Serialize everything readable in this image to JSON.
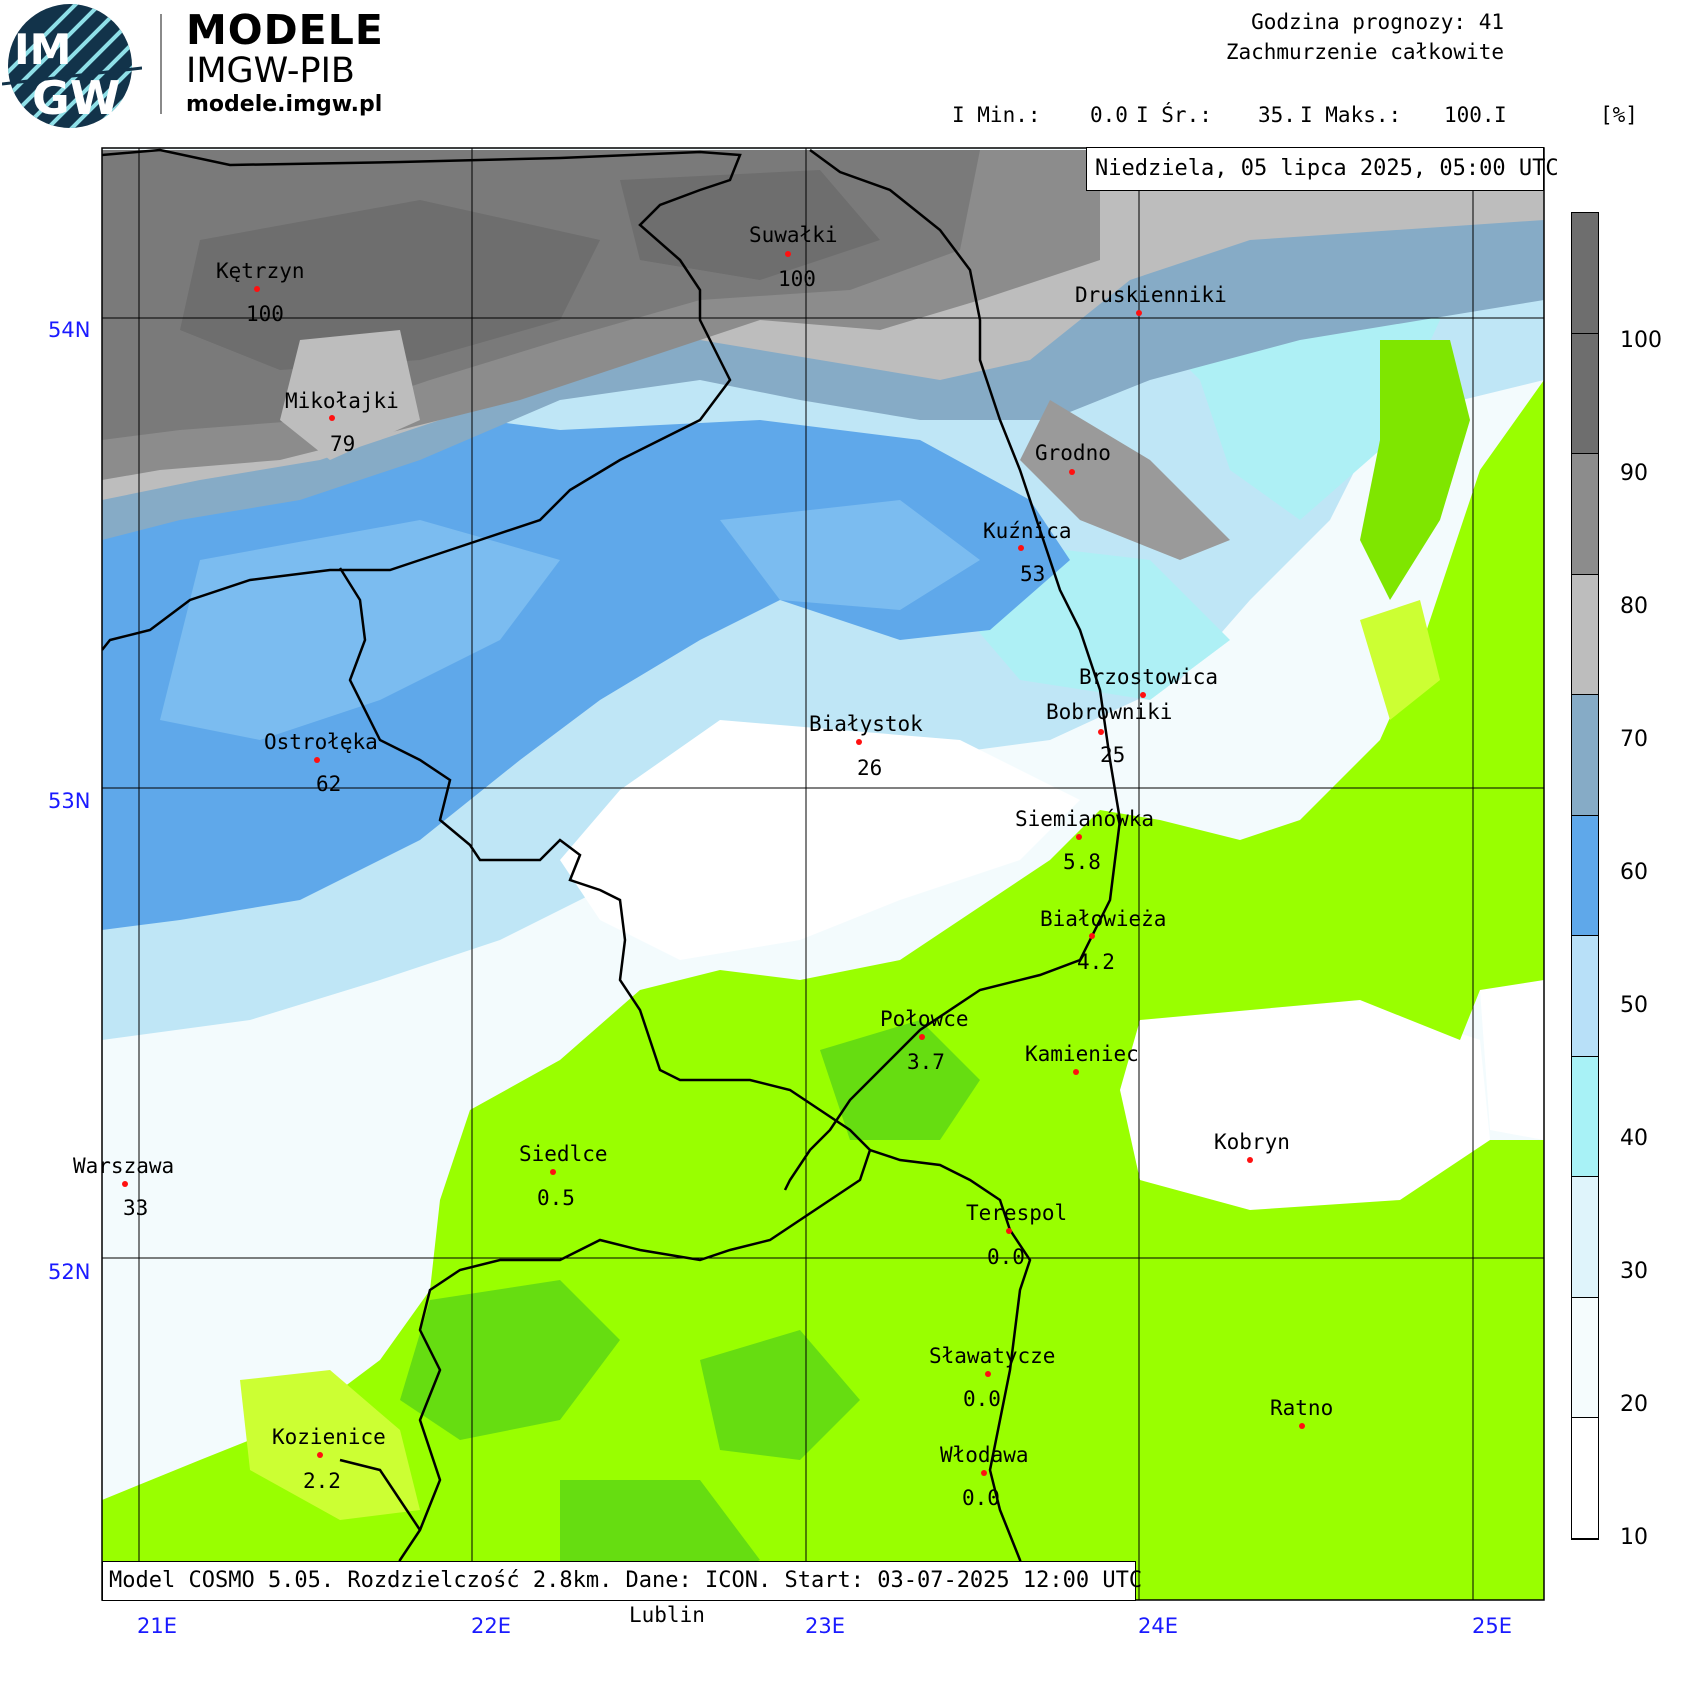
{
  "header": {
    "brand_title": "MODELE",
    "brand_subtitle": "IMGW-PIB",
    "brand_url": "modele.imgw.pl",
    "logo_text_top": "IM",
    "logo_text_bottom": "GW",
    "forecast_hour_label": "Godzina prognozy: 41",
    "parameter_label": "Zachmurzenie całkowite",
    "stats": {
      "min_label": "I Min.:",
      "min_value": "0.0",
      "avg_label": "I Śr.:",
      "avg_value": "35.",
      "max_label": "I Maks.:",
      "max_value": "100.",
      "bar": "I",
      "unit": "[%]"
    }
  },
  "map": {
    "date_label": "Niedziela, 05 lipca 2025, 05:00 UTC",
    "footer_label": "Model COSMO 5.05. Rozdzielczość 2.8km. Dane: ICON. Start: 03-07-2025 12:00 UTC",
    "below_label": "Lublin",
    "latitudes": [
      "54N",
      "53N",
      "52N"
    ],
    "longitudes": [
      "21E",
      "22E",
      "23E",
      "24E",
      "25E"
    ],
    "stations": [
      {
        "name": "Kętrzyn",
        "value": "100"
      },
      {
        "name": "Suwałki",
        "value": "100"
      },
      {
        "name": "Druskienniki",
        "value": ""
      },
      {
        "name": "Mikołajki",
        "value": "79"
      },
      {
        "name": "Grodno",
        "value": ""
      },
      {
        "name": "Kuźnica",
        "value": "53"
      },
      {
        "name": "Brzostowica",
        "value": ""
      },
      {
        "name": "Bobrowniki",
        "value": "25"
      },
      {
        "name": "Białystok",
        "value": "26"
      },
      {
        "name": "Ostrołęka",
        "value": "62"
      },
      {
        "name": "Siemianówka",
        "value": "5.8"
      },
      {
        "name": "Białowieża",
        "value": "4.2"
      },
      {
        "name": "Połowce",
        "value": "3.7"
      },
      {
        "name": "Kamieniec",
        "value": ""
      },
      {
        "name": "Kobryn",
        "value": ""
      },
      {
        "name": "Warszawa",
        "value": "33"
      },
      {
        "name": "Siedlce",
        "value": "0.5"
      },
      {
        "name": "Terespol",
        "value": "0.0"
      },
      {
        "name": "Sławatycze",
        "value": "0.0"
      },
      {
        "name": "Ratno",
        "value": ""
      },
      {
        "name": "Kozienice",
        "value": "2.2"
      },
      {
        "name": "Włodawa",
        "value": "0.0"
      }
    ]
  },
  "legend": {
    "ticks": [
      "100",
      "90",
      "80",
      "70",
      "60",
      "50",
      "40",
      "30",
      "20",
      "10"
    ],
    "colors": [
      "#6e6e6e",
      "#8c8c8c",
      "#bdbdbd",
      "#86abc6",
      "#5fa8ea",
      "#b8e0f8",
      "#a8f2f6",
      "#dff4fb",
      "#f5fcfd",
      "#ffffff"
    ]
  }
}
